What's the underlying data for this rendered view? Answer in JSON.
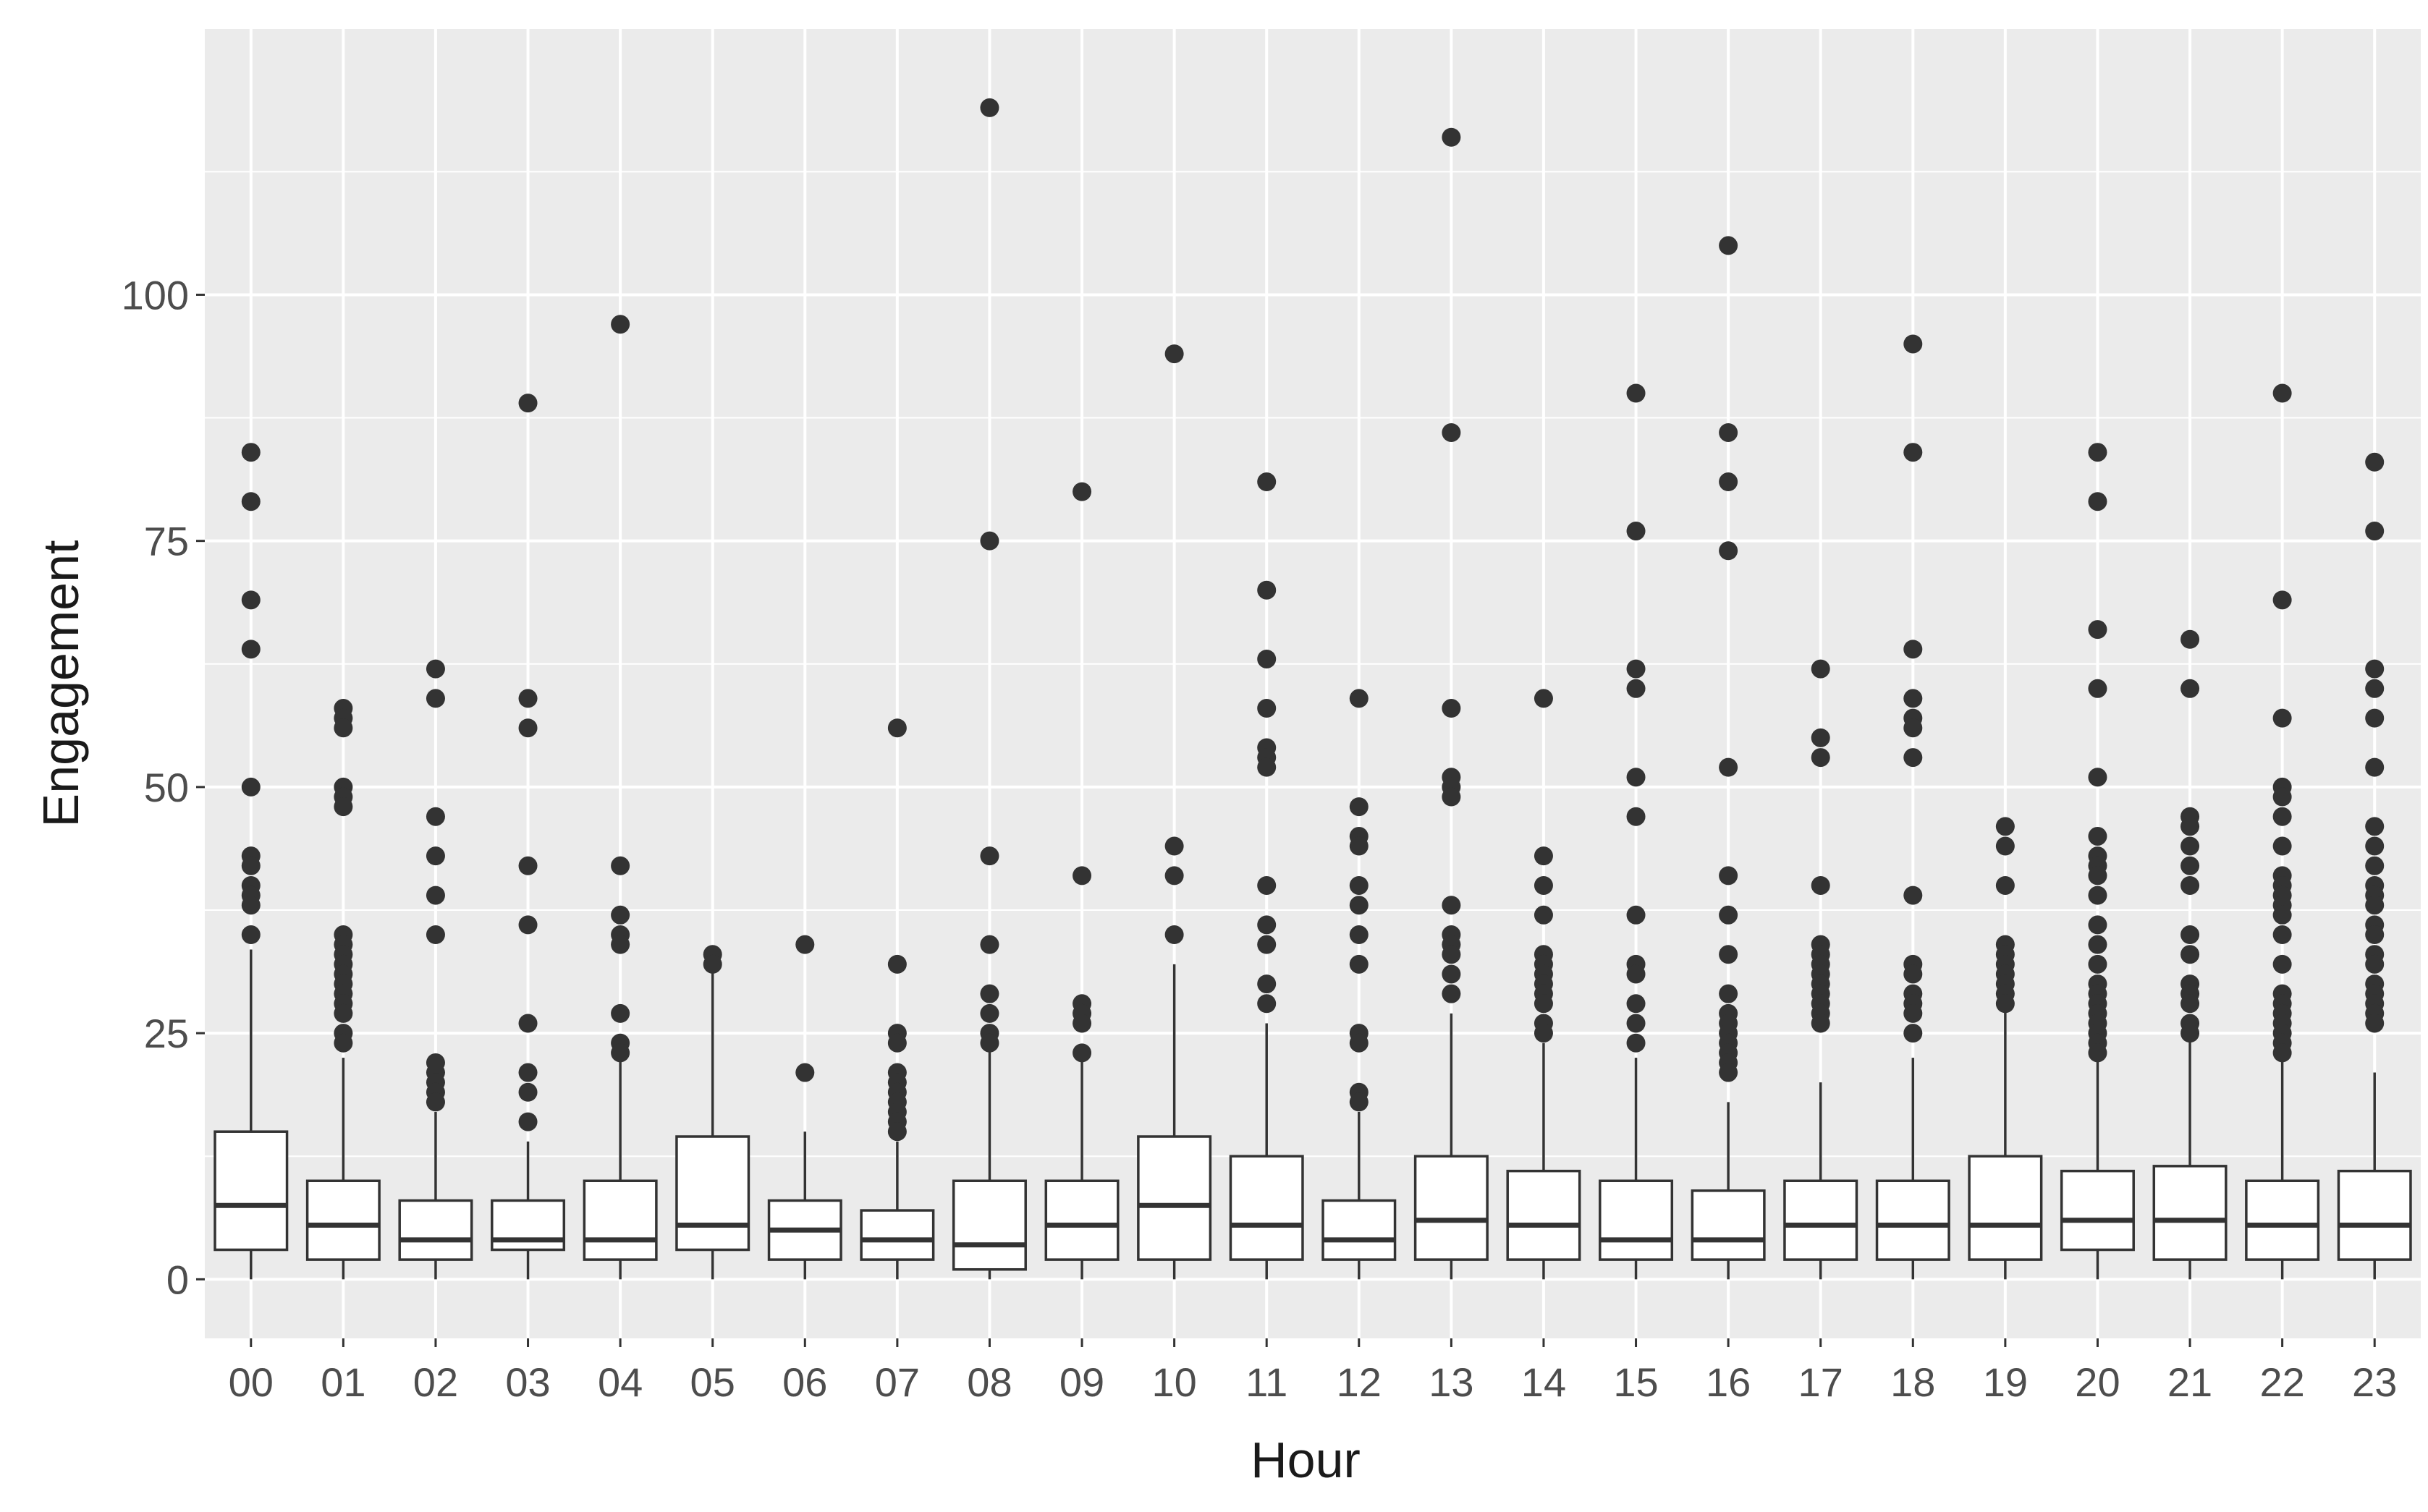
{
  "chart_data": {
    "type": "boxplot",
    "title": "",
    "xlabel": "Hour",
    "ylabel": "Engagement",
    "ylim": [
      -6,
      127
    ],
    "y_ticks": [
      0,
      25,
      50,
      75,
      100
    ],
    "grid": true,
    "colors": {
      "panel_bg": "#ebebeb",
      "grid_major": "#ffffff",
      "box_fill": "#ffffff",
      "box_line": "#333333",
      "outlier": "#333333"
    },
    "categories": [
      "00",
      "01",
      "02",
      "03",
      "04",
      "05",
      "06",
      "07",
      "08",
      "09",
      "10",
      "11",
      "12",
      "13",
      "14",
      "15",
      "16",
      "17",
      "18",
      "19",
      "20",
      "21",
      "22",
      "23"
    ],
    "boxes": [
      {
        "lower": 0,
        "q1": 3,
        "median": 7.5,
        "q3": 15,
        "upper": 33.5,
        "outliers": [
          84,
          79,
          69,
          64,
          50,
          43,
          42,
          40,
          39,
          38,
          35
        ]
      },
      {
        "lower": 0,
        "q1": 2,
        "median": 5.5,
        "q3": 10,
        "upper": 22.5,
        "outliers": [
          58,
          57,
          56,
          50,
          49,
          48,
          35,
          34,
          33,
          32,
          31,
          30,
          29,
          28,
          27,
          25,
          24
        ]
      },
      {
        "lower": 0,
        "q1": 2,
        "median": 4,
        "q3": 8,
        "upper": 17,
        "outliers": [
          62,
          59,
          47,
          43,
          39,
          35,
          22,
          21,
          20,
          19,
          18
        ]
      },
      {
        "lower": 0,
        "q1": 3,
        "median": 4,
        "q3": 8,
        "upper": 14,
        "outliers": [
          89,
          59,
          56,
          42,
          36,
          26,
          21,
          19,
          16
        ]
      },
      {
        "lower": 0,
        "q1": 2,
        "median": 4,
        "q3": 10,
        "upper": 22.5,
        "outliers": [
          97,
          42,
          37,
          35,
          34,
          27,
          24,
          23
        ]
      },
      {
        "lower": 0,
        "q1": 3,
        "median": 5.5,
        "q3": 14.5,
        "upper": 31.5,
        "outliers": [
          33,
          32
        ]
      },
      {
        "lower": 0,
        "q1": 2,
        "median": 5,
        "q3": 8,
        "upper": 15,
        "outliers": [
          34,
          21
        ]
      },
      {
        "lower": 0,
        "q1": 2,
        "median": 4,
        "q3": 7,
        "upper": 14,
        "outliers": [
          56,
          32,
          25,
          24,
          21,
          20,
          19,
          18,
          17,
          16,
          15
        ]
      },
      {
        "lower": 0,
        "q1": 1,
        "median": 3.5,
        "q3": 10,
        "upper": 23.5,
        "outliers": [
          119,
          75,
          43,
          34,
          29,
          27,
          25,
          24
        ]
      },
      {
        "lower": 0,
        "q1": 2,
        "median": 5.5,
        "q3": 10,
        "upper": 22.5,
        "outliers": [
          80,
          41,
          28,
          27,
          26,
          23
        ]
      },
      {
        "lower": 0,
        "q1": 2,
        "median": 7.5,
        "q3": 14.5,
        "upper": 32,
        "outliers": [
          94,
          44,
          41,
          35
        ]
      },
      {
        "lower": 0,
        "q1": 2,
        "median": 5.5,
        "q3": 12.5,
        "upper": 26,
        "outliers": [
          81,
          70,
          63,
          58,
          54,
          53,
          52,
          40,
          36,
          34,
          30,
          28
        ]
      },
      {
        "lower": 0,
        "q1": 2,
        "median": 4,
        "q3": 8,
        "upper": 17,
        "outliers": [
          59,
          48,
          45,
          44,
          40,
          38,
          35,
          32,
          25,
          24,
          19,
          18
        ]
      },
      {
        "lower": 0,
        "q1": 2,
        "median": 6,
        "q3": 12.5,
        "upper": 27,
        "outliers": [
          116,
          86,
          58,
          51,
          50,
          49,
          38,
          35,
          34,
          33,
          31,
          29
        ]
      },
      {
        "lower": 0,
        "q1": 2,
        "median": 5.5,
        "q3": 11,
        "upper": 24,
        "outliers": [
          59,
          43,
          40,
          37,
          33,
          32,
          31,
          30,
          29,
          28,
          26,
          25
        ]
      },
      {
        "lower": 0,
        "q1": 2,
        "median": 4,
        "q3": 10,
        "upper": 22.5,
        "outliers": [
          90,
          76,
          62,
          60,
          51,
          47,
          37,
          32,
          31,
          28,
          26,
          24
        ]
      },
      {
        "lower": 0,
        "q1": 2,
        "median": 4,
        "q3": 9,
        "upper": 18,
        "outliers": [
          105,
          86,
          81,
          74,
          52,
          41,
          37,
          33,
          29,
          27,
          26,
          25,
          24,
          23,
          22,
          21
        ]
      },
      {
        "lower": 0,
        "q1": 2,
        "median": 5.5,
        "q3": 10,
        "upper": 20,
        "outliers": [
          62,
          55,
          53,
          40,
          34,
          33,
          32,
          31,
          30,
          29,
          28,
          27,
          26
        ]
      },
      {
        "lower": 0,
        "q1": 2,
        "median": 5.5,
        "q3": 10,
        "upper": 22.5,
        "outliers": [
          95,
          84,
          64,
          59,
          57,
          56,
          53,
          39,
          32,
          31,
          29,
          28,
          27,
          25
        ]
      },
      {
        "lower": 0,
        "q1": 2,
        "median": 5.5,
        "q3": 12.5,
        "upper": 27.5,
        "outliers": [
          46,
          44,
          40,
          34,
          33,
          32,
          31,
          30,
          29,
          28
        ]
      },
      {
        "lower": 0,
        "q1": 3,
        "median": 6,
        "q3": 11,
        "upper": 22.5,
        "outliers": [
          84,
          79,
          66,
          60,
          51,
          45,
          43,
          42,
          41,
          39,
          36,
          34,
          32,
          30,
          29,
          28,
          27,
          26,
          25,
          24,
          23
        ]
      },
      {
        "lower": 0,
        "q1": 2,
        "median": 6,
        "q3": 11.5,
        "upper": 24.5,
        "outliers": [
          65,
          60,
          47,
          46,
          44,
          42,
          40,
          35,
          33,
          30,
          29,
          28,
          26,
          25
        ]
      },
      {
        "lower": 0,
        "q1": 2,
        "median": 5.5,
        "q3": 10,
        "upper": 22.5,
        "outliers": [
          90,
          69,
          57,
          50,
          49,
          47,
          44,
          41,
          40,
          39,
          38,
          37,
          35,
          32,
          29,
          28,
          27,
          26,
          25,
          24,
          23
        ]
      },
      {
        "lower": 0,
        "q1": 2,
        "median": 5.5,
        "q3": 11,
        "upper": 21,
        "outliers": [
          83,
          76,
          62,
          60,
          57,
          52,
          46,
          44,
          42,
          40,
          39,
          38,
          36,
          35,
          33,
          32,
          30,
          29,
          28,
          27,
          26
        ]
      }
    ]
  }
}
